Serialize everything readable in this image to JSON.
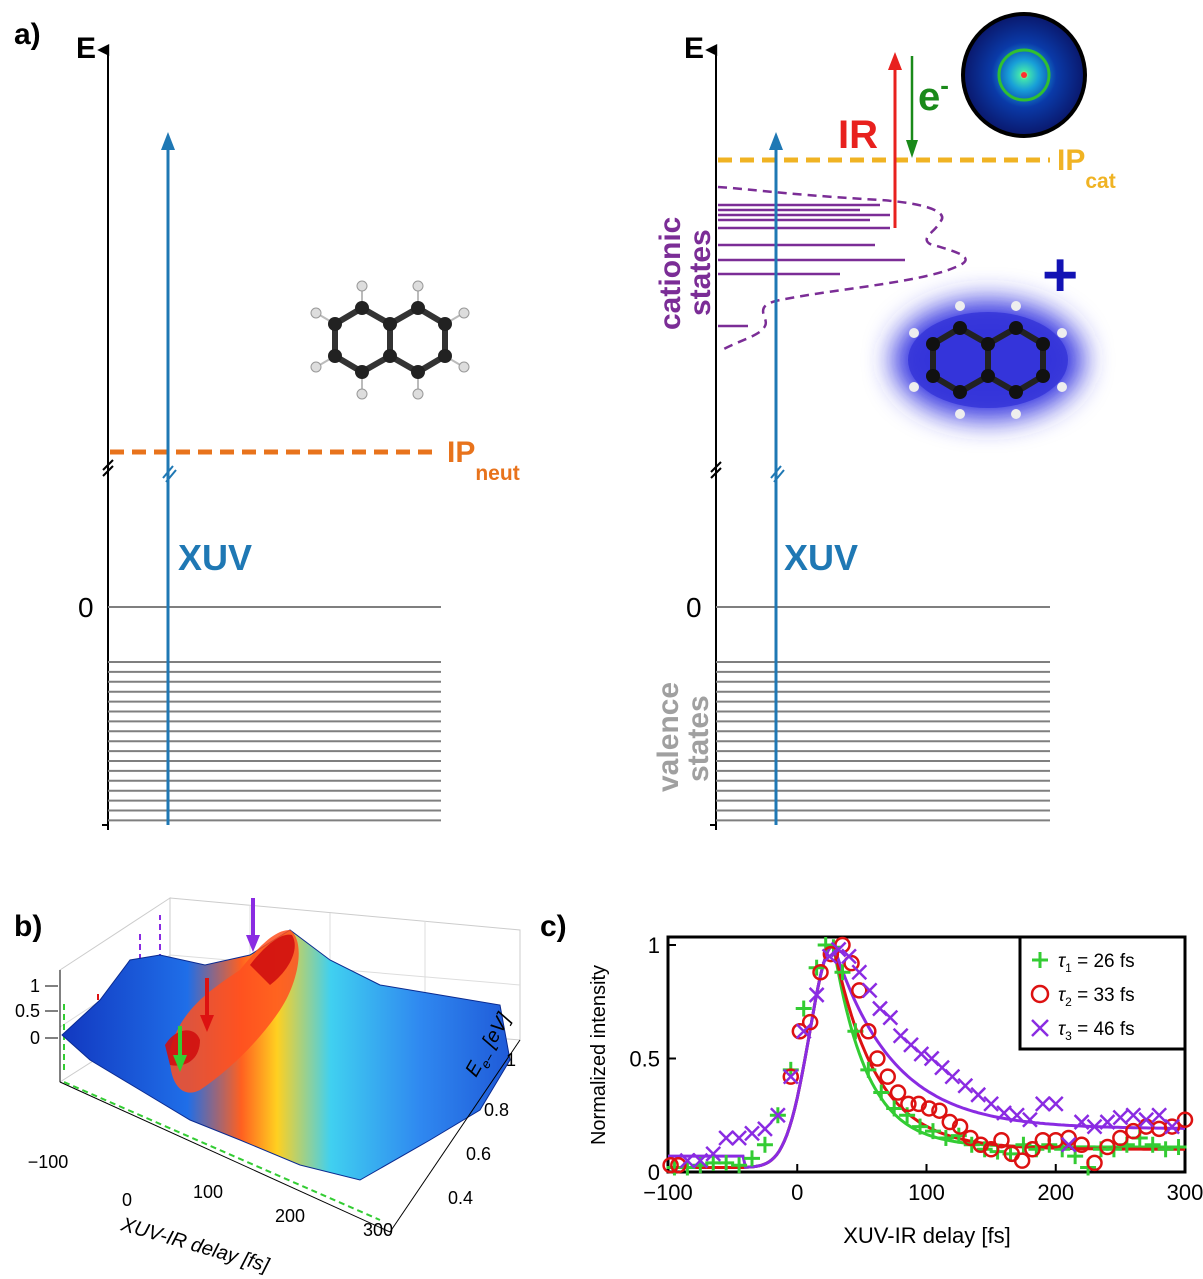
{
  "panel_a": {
    "label": "a)",
    "left": {
      "axis_label": "E",
      "zero_label": "0",
      "arrow_label": "XUV",
      "ip_label": "IP",
      "ip_sub": "neut",
      "colors": {
        "xuv": "#1f78b4",
        "ip": "#e8731c",
        "levels": "#7f7f7f",
        "axis": "#000000"
      }
    },
    "right": {
      "axis_label": "E",
      "zero_label": "0",
      "arrow_label": "XUV",
      "ir_label": "IR",
      "electron_label": "e",
      "electron_sup": "-",
      "ip_label": "IP",
      "ip_sub": "cat",
      "cation_label_1": "cationic",
      "cation_label_2": "states",
      "plus_label": "+",
      "valence_label_1": "valence",
      "valence_label_2": "states",
      "colors": {
        "xuv": "#1f78b4",
        "ip": "#f0b323",
        "ir": "#e8211e",
        "electron": "#1a8a1a",
        "cationic": "#7b2d96",
        "valence": "#a0a0a0",
        "plus": "#1212b4"
      }
    }
  },
  "panel_b": {
    "label": "b)",
    "z_ticks": [
      "1",
      "0.5",
      "0"
    ],
    "x_ticks": [
      "−100",
      "0",
      "100",
      "200",
      "300"
    ],
    "x_label": "XUV-IR delay [fs]",
    "y_ticks": [
      "0.4",
      "0.6",
      "0.8",
      "1"
    ],
    "y_label": "E",
    "y_label_sub": "e−",
    "y_label_unit": " [eV]"
  },
  "panel_c": {
    "label": "c)",
    "legend": [
      {
        "symbol": "+",
        "tau": "τ",
        "sub": "1",
        "value": " = 26 fs",
        "color": "#33cc33"
      },
      {
        "symbol": "o",
        "tau": "τ",
        "sub": "2",
        "value": " = 33 fs",
        "color": "#dd1111"
      },
      {
        "symbol": "x",
        "tau": "τ",
        "sub": "3",
        "value": " = 46 fs",
        "color": "#8a2be2"
      }
    ]
  },
  "chart_data": {
    "type": "scatter",
    "xlabel": "XUV-IR delay [fs]",
    "ylabel": "Normalized intensity",
    "xlim": [
      -100,
      300
    ],
    "ylim": [
      0,
      1
    ],
    "x_ticks": [
      "−100",
      "0",
      "100",
      "200",
      "300"
    ],
    "y_ticks": [
      "0",
      "0.5",
      "1"
    ],
    "legend_position": "top-right",
    "series": [
      {
        "name": "τ1 = 26 fs",
        "marker": "+",
        "color": "#33cc33",
        "x": [
          -95,
          -85,
          -75,
          -65,
          -55,
          -45,
          -35,
          -25,
          -15,
          -5,
          5,
          15,
          22,
          28,
          35,
          45,
          55,
          65,
          75,
          85,
          95,
          105,
          115,
          125,
          135,
          145,
          155,
          165,
          175,
          185,
          195,
          205,
          215,
          225,
          235,
          245,
          255,
          265,
          275,
          285,
          295
        ],
        "y": [
          0.02,
          0.02,
          0.03,
          0.04,
          0.04,
          0.03,
          0.06,
          0.12,
          0.25,
          0.45,
          0.72,
          0.9,
          1.0,
          0.99,
          0.88,
          0.62,
          0.45,
          0.35,
          0.28,
          0.25,
          0.2,
          0.18,
          0.15,
          0.16,
          0.12,
          0.1,
          0.09,
          0.08,
          0.12,
          0.1,
          0.12,
          0.1,
          0.07,
          0.02,
          0.1,
          0.1,
          0.12,
          0.15,
          0.12,
          0.1,
          0.11
        ]
      },
      {
        "name": "τ2 = 33 fs",
        "marker": "o",
        "color": "#dd1111",
        "x": [
          -98,
          -92,
          -5,
          2,
          10,
          18,
          26,
          35,
          42,
          48,
          55,
          62,
          70,
          78,
          86,
          94,
          102,
          110,
          118,
          126,
          134,
          142,
          150,
          158,
          166,
          174,
          182,
          190,
          200,
          210,
          220,
          230,
          240,
          250,
          260,
          270,
          280,
          290,
          300
        ],
        "y": [
          0.03,
          0.03,
          0.42,
          0.62,
          0.66,
          0.88,
          0.96,
          1.0,
          0.92,
          0.8,
          0.62,
          0.5,
          0.42,
          0.35,
          0.3,
          0.3,
          0.28,
          0.27,
          0.22,
          0.2,
          0.15,
          0.12,
          0.1,
          0.14,
          0.08,
          0.05,
          0.1,
          0.14,
          0.14,
          0.15,
          0.12,
          0.04,
          0.11,
          0.15,
          0.18,
          0.2,
          0.19,
          0.2,
          0.23
        ]
      },
      {
        "name": "τ3 = 46 fs",
        "marker": "x",
        "color": "#8a2be2",
        "x": [
          -85,
          -75,
          -65,
          -55,
          -45,
          -35,
          -25,
          -15,
          -5,
          5,
          15,
          25,
          32,
          40,
          48,
          56,
          64,
          72,
          80,
          88,
          96,
          104,
          112,
          120,
          130,
          140,
          150,
          160,
          170,
          180,
          190,
          200,
          210,
          220,
          230,
          240,
          250,
          260,
          270,
          280,
          290
        ],
        "y": [
          0.05,
          0.05,
          0.08,
          0.15,
          0.15,
          0.17,
          0.19,
          0.25,
          0.42,
          0.62,
          0.78,
          0.95,
          0.98,
          0.95,
          0.88,
          0.8,
          0.72,
          0.68,
          0.6,
          0.56,
          0.52,
          0.5,
          0.46,
          0.42,
          0.38,
          0.34,
          0.3,
          0.26,
          0.25,
          0.23,
          0.3,
          0.3,
          0.12,
          0.22,
          0.2,
          0.22,
          0.24,
          0.25,
          0.23,
          0.25,
          0.2
        ]
      }
    ],
    "fit_curves": [
      {
        "name": "fit τ1",
        "color": "#33cc33",
        "tau": 26
      },
      {
        "name": "fit τ2",
        "color": "#dd1111",
        "tau": 33
      },
      {
        "name": "fit τ3",
        "color": "#8a2be2",
        "tau": 46
      }
    ]
  }
}
